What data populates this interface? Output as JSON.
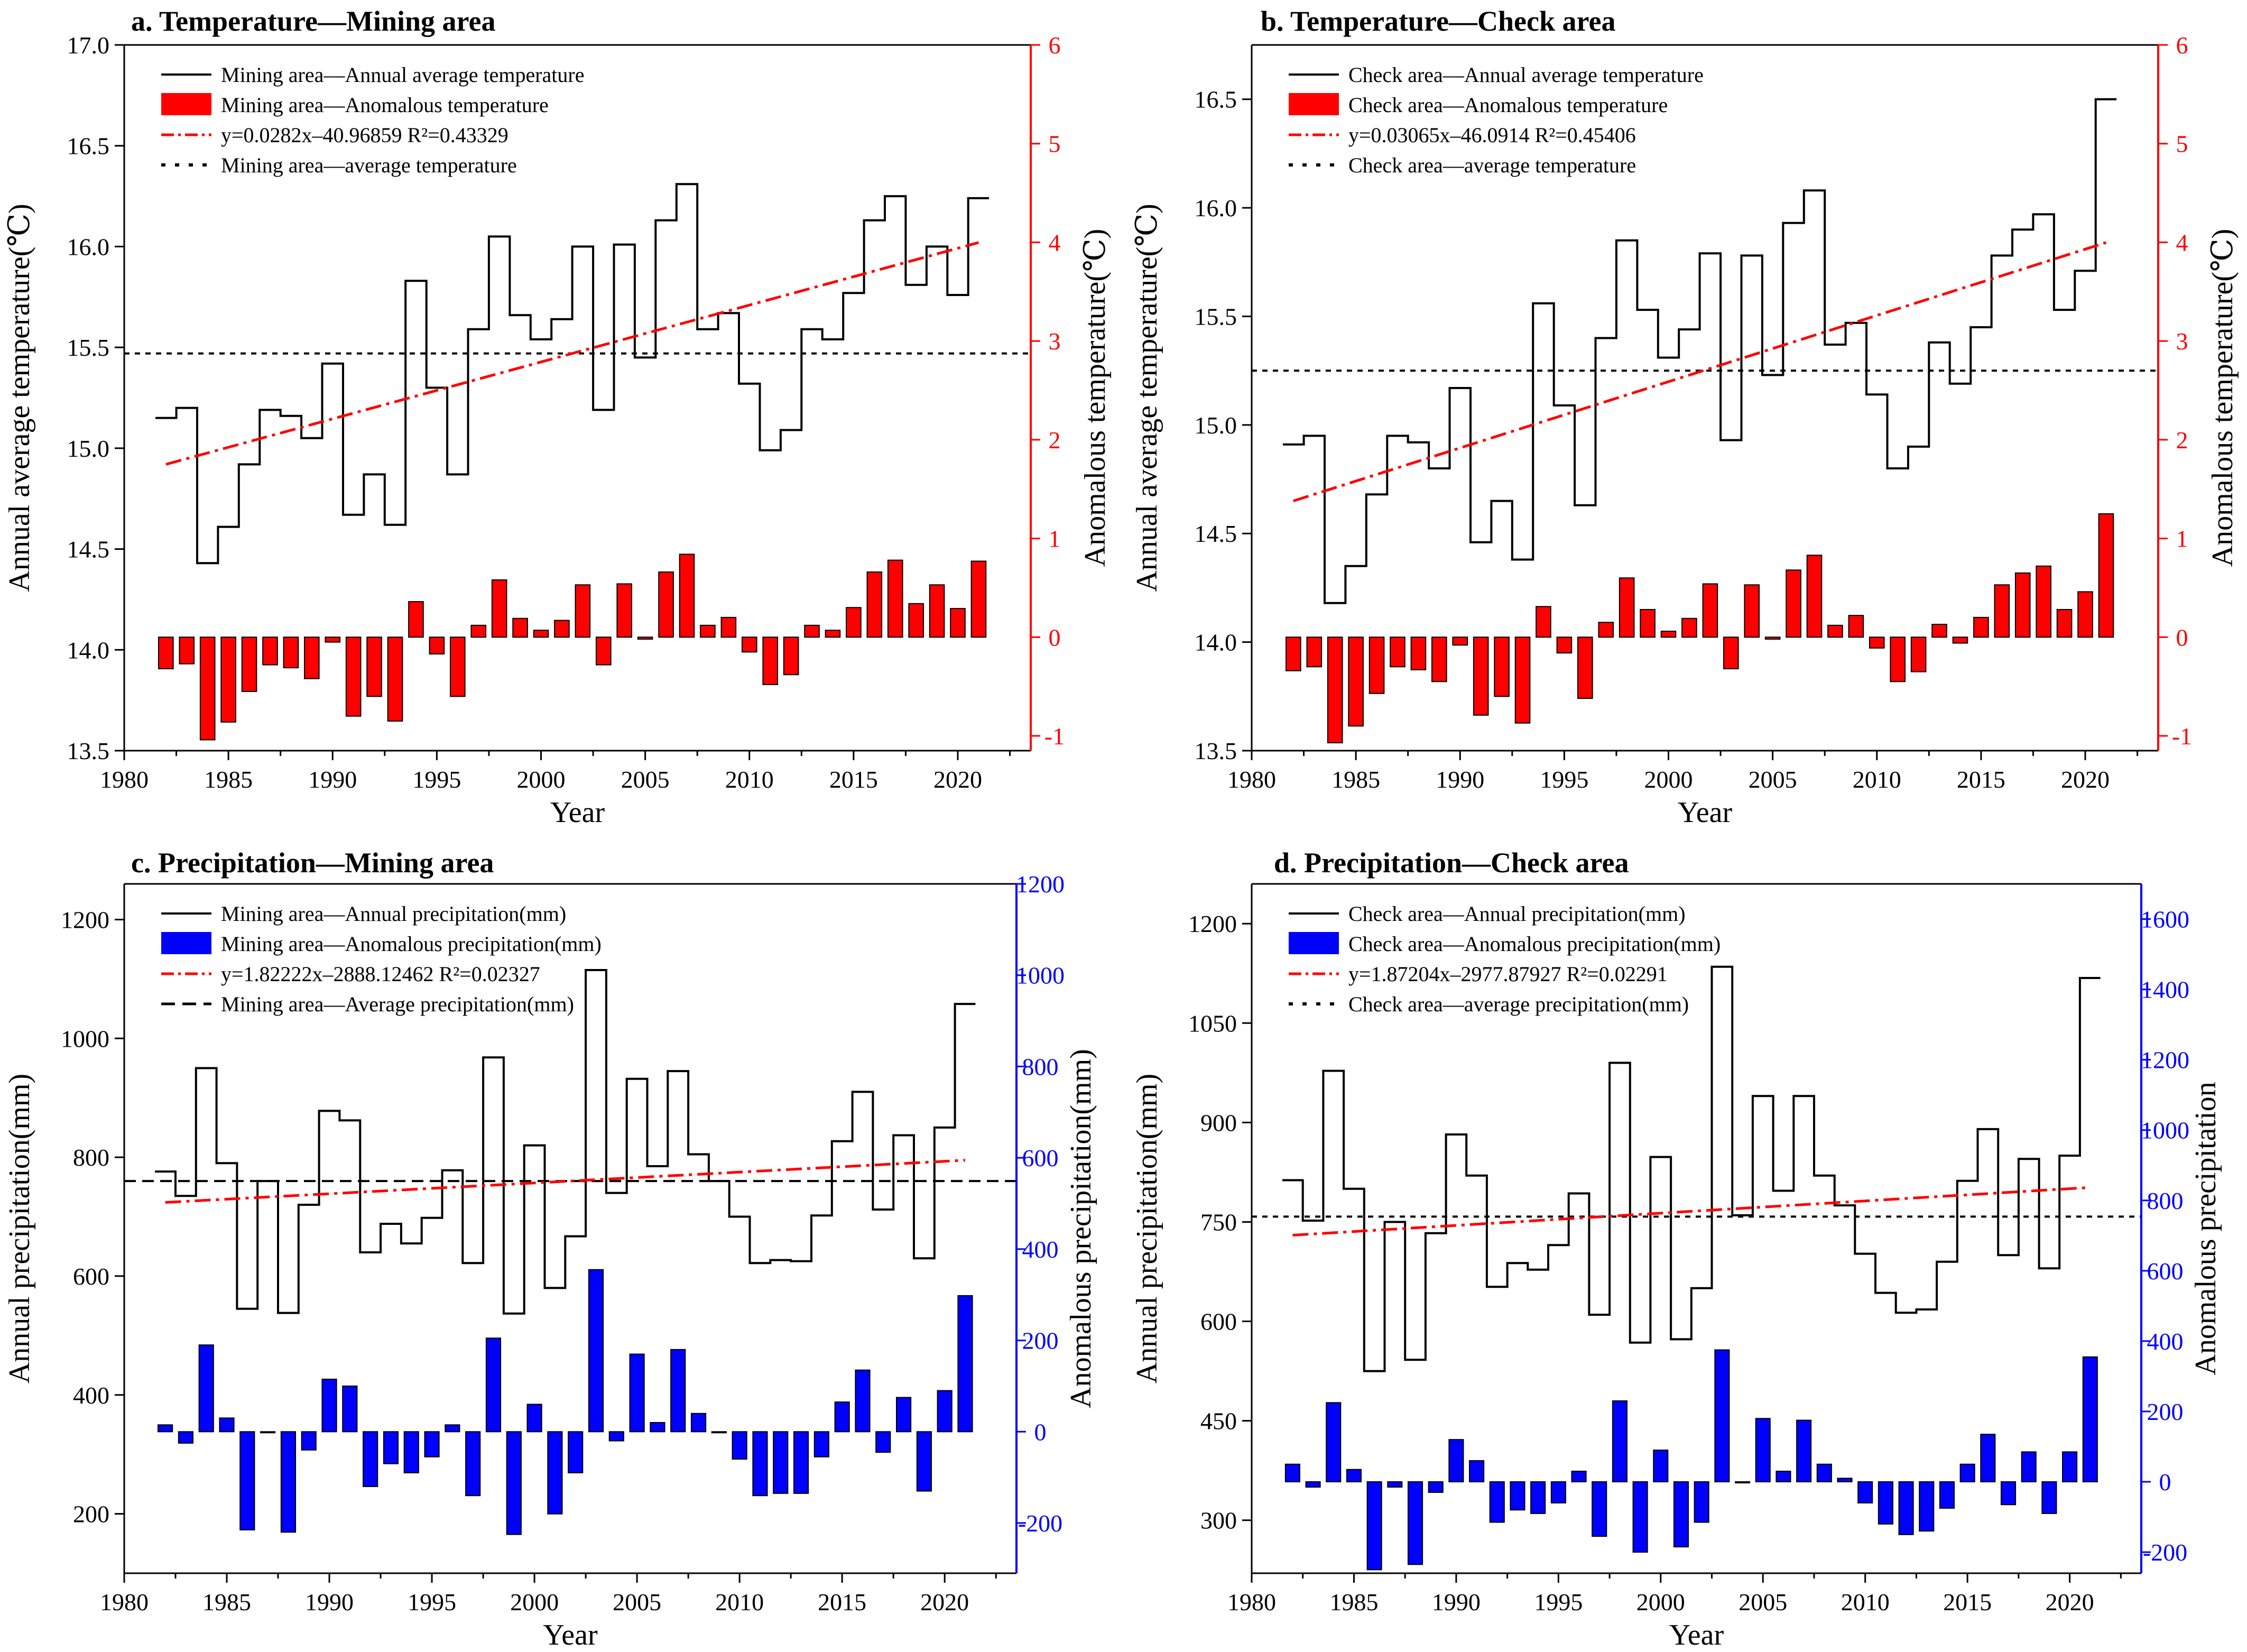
{
  "figure": {
    "description_label": "Temperature and precipitation in mining and check areas, 1982-2021"
  },
  "colors": {
    "line": "#000000",
    "bar_temp": "#ff0000",
    "bar_precip": "#0000ff",
    "trend": "#ff0000",
    "mean": "#000000",
    "axis_red": "#ff0000",
    "axis_blue": "#0000ff"
  },
  "chart_data": [
    {
      "id": "a",
      "type": "bar+line",
      "title": "a. Temperature—Mining area",
      "xlabel": "Year",
      "ylabel": "Annual average temperature(℃)",
      "y2label": "Anomalous temperature(℃)",
      "xlim": [
        1980,
        2023.5
      ],
      "ylim": [
        13.5,
        17.0
      ],
      "y2lim": [
        -1.15,
        6.0
      ],
      "xticks": [
        1980,
        1985,
        1990,
        1995,
        2000,
        2005,
        2010,
        2015,
        2020
      ],
      "yticks": [
        13.5,
        14.0,
        14.5,
        15.0,
        15.5,
        16.0,
        16.5,
        17.0
      ],
      "ytick_labels": [
        "13.5",
        "14.0",
        "14.5",
        "15.0",
        "15.5",
        "16.0",
        "16.5",
        "17.0"
      ],
      "y2ticks": [
        -1,
        0,
        1,
        2,
        3,
        4,
        5,
        6
      ],
      "bar_color": "#ff0000",
      "axis2_color": "#ff0000",
      "legend": [
        {
          "kind": "line",
          "label": "Mining area—Annual average temperature"
        },
        {
          "kind": "bar",
          "label": "Mining area—Anomalous temperature"
        },
        {
          "kind": "trend",
          "label": "y=0.0282x–40.96859 R²=0.43329"
        },
        {
          "kind": "mean",
          "label": "Mining area—average temperature"
        }
      ],
      "x": [
        1982,
        1983,
        1984,
        1985,
        1986,
        1987,
        1988,
        1989,
        1990,
        1991,
        1992,
        1993,
        1994,
        1995,
        1996,
        1997,
        1998,
        1999,
        2000,
        2001,
        2002,
        2003,
        2004,
        2005,
        2006,
        2007,
        2008,
        2009,
        2010,
        2011,
        2012,
        2013,
        2014,
        2015,
        2016,
        2017,
        2018,
        2019,
        2020,
        2021
      ],
      "series": [
        {
          "name": "Mining area—Annual average temperature",
          "axis": "left",
          "values": [
            15.15,
            15.2,
            14.43,
            14.61,
            14.92,
            15.19,
            15.16,
            15.05,
            15.42,
            14.67,
            14.87,
            14.62,
            15.83,
            15.3,
            14.87,
            15.59,
            16.05,
            15.66,
            15.54,
            15.64,
            16.0,
            15.19,
            16.01,
            15.45,
            16.13,
            16.31,
            15.59,
            15.67,
            15.32,
            14.99,
            15.09,
            15.59,
            15.54,
            15.77,
            16.13,
            16.25,
            15.81,
            16.0,
            15.76,
            16.24
          ]
        },
        {
          "name": "Mining area—Anomalous temperature",
          "axis": "right",
          "values": [
            -0.32,
            -0.27,
            -1.04,
            -0.86,
            -0.55,
            -0.28,
            -0.31,
            -0.42,
            -0.05,
            -0.8,
            -0.6,
            -0.85,
            0.36,
            -0.17,
            -0.6,
            0.12,
            0.58,
            0.19,
            0.07,
            0.17,
            0.53,
            -0.28,
            0.54,
            -0.02,
            0.66,
            0.84,
            0.12,
            0.2,
            -0.15,
            -0.48,
            -0.38,
            0.12,
            0.07,
            0.3,
            0.66,
            0.78,
            0.34,
            0.53,
            0.29,
            0.77
          ]
        }
      ],
      "trend": {
        "x": [
          1982,
          2021
        ],
        "y": [
          14.92,
          16.02
        ]
      },
      "mean": 15.47
    },
    {
      "id": "b",
      "type": "bar+line",
      "title": "b. Temperature—Check area",
      "xlabel": "Year",
      "ylabel": "Annual average temperature(℃)",
      "y2label": "Anomalous temperature(℃)",
      "xlim": [
        1980,
        2023.5
      ],
      "ylim": [
        13.5,
        16.75
      ],
      "y2lim": [
        -1.15,
        6.0
      ],
      "xticks": [
        1980,
        1985,
        1990,
        1995,
        2000,
        2005,
        2010,
        2015,
        2020
      ],
      "yticks": [
        13.5,
        14.0,
        14.5,
        15.0,
        15.5,
        16.0,
        16.5
      ],
      "ytick_labels": [
        "13.5",
        "14.0",
        "14.5",
        "15.0",
        "15.5",
        "16.0",
        "16.5"
      ],
      "y2ticks": [
        -1,
        0,
        1,
        2,
        3,
        4,
        5,
        6
      ],
      "bar_color": "#ff0000",
      "axis2_color": "#ff0000",
      "legend": [
        {
          "kind": "line",
          "label": "Check area—Annual average temperature"
        },
        {
          "kind": "bar",
          "label": "Check area—Anomalous temperature"
        },
        {
          "kind": "trend",
          "label": "y=0.03065x–46.0914  R²=0.45406"
        },
        {
          "kind": "mean",
          "label": "Check area—average temperature"
        }
      ],
      "x": [
        1982,
        1983,
        1984,
        1985,
        1986,
        1987,
        1988,
        1989,
        1990,
        1991,
        1992,
        1993,
        1994,
        1995,
        1996,
        1997,
        1998,
        1999,
        2000,
        2001,
        2002,
        2003,
        2004,
        2005,
        2006,
        2007,
        2008,
        2009,
        2010,
        2011,
        2012,
        2013,
        2014,
        2015,
        2016,
        2017,
        2018,
        2019,
        2020,
        2021
      ],
      "series": [
        {
          "name": "Check area—Annual average temperature",
          "axis": "left",
          "values": [
            14.91,
            14.95,
            14.18,
            14.35,
            14.68,
            14.95,
            14.92,
            14.8,
            15.17,
            14.46,
            14.65,
            14.38,
            15.56,
            15.09,
            14.63,
            15.4,
            15.85,
            15.53,
            15.31,
            15.44,
            15.79,
            14.93,
            15.78,
            15.23,
            15.93,
            16.08,
            15.37,
            15.47,
            15.14,
            14.8,
            14.9,
            15.38,
            15.19,
            15.45,
            15.78,
            15.9,
            15.97,
            15.53,
            15.71,
            16.5
          ]
        },
        {
          "name": "Check area—Anomalous temperature",
          "axis": "right",
          "values": [
            -0.34,
            -0.3,
            -1.07,
            -0.9,
            -0.57,
            -0.3,
            -0.33,
            -0.45,
            -0.08,
            -0.79,
            -0.6,
            -0.87,
            0.31,
            -0.16,
            -0.62,
            0.15,
            0.6,
            0.28,
            0.06,
            0.19,
            0.54,
            -0.32,
            0.53,
            -0.02,
            0.68,
            0.83,
            0.12,
            0.22,
            -0.11,
            -0.45,
            -0.35,
            0.13,
            -0.06,
            0.2,
            0.53,
            0.65,
            0.72,
            0.28,
            0.46,
            1.25
          ]
        }
      ],
      "trend": {
        "x": [
          1982,
          2021
        ],
        "y": [
          14.65,
          15.84
        ]
      },
      "mean": 15.25
    },
    {
      "id": "c",
      "type": "bar+line",
      "title": "c. Precipitation—Mining area",
      "xlabel": "Year",
      "ylabel": "Annual precipitation(mm)",
      "y2label": "Anomalous precipitation(mm)",
      "xlim": [
        1980,
        2023.5
      ],
      "ylim": [
        100,
        1260
      ],
      "y2lim": [
        -310,
        1200
      ],
      "xticks": [
        1980,
        1985,
        1990,
        1995,
        2000,
        2005,
        2010,
        2015,
        2020
      ],
      "yticks": [
        200,
        400,
        600,
        800,
        1000,
        1200
      ],
      "ytick_labels": [
        "200",
        "400",
        "600",
        "800",
        "1000",
        "1200"
      ],
      "y2ticks": [
        -200,
        0,
        200,
        400,
        600,
        800,
        1000,
        1200
      ],
      "bar_color": "#0000ff",
      "axis2_color": "#0000ff",
      "legend": [
        {
          "kind": "line",
          "label": "Mining area—Annual  precipitation(mm)"
        },
        {
          "kind": "bar",
          "label": "Mining area—Anomalous precipitation(mm)"
        },
        {
          "kind": "trend",
          "label": "y=1.82222x–2888.12462  R²=0.02327"
        },
        {
          "kind": "meanlong",
          "label": "Mining area—Average precipitation(mm)"
        }
      ],
      "x": [
        1982,
        1983,
        1984,
        1985,
        1986,
        1987,
        1988,
        1989,
        1990,
        1991,
        1992,
        1993,
        1994,
        1995,
        1996,
        1997,
        1998,
        1999,
        2000,
        2001,
        2002,
        2003,
        2004,
        2005,
        2006,
        2007,
        2008,
        2009,
        2010,
        2011,
        2012,
        2013,
        2014,
        2015,
        2016,
        2017,
        2018,
        2019,
        2020,
        2021
      ],
      "series": [
        {
          "name": "Mining area—Annual  precipitation(mm)",
          "axis": "left",
          "values": [
            776,
            735,
            950,
            790,
            545,
            760,
            538,
            720,
            878,
            862,
            640,
            688,
            655,
            698,
            778,
            622,
            968,
            537,
            820,
            580,
            667,
            1115,
            740,
            932,
            785,
            945,
            805,
            760,
            700,
            622,
            627,
            625,
            702,
            827,
            910,
            712,
            837,
            630,
            850,
            1058
          ]
        },
        {
          "name": "Mining area—Anomalous precipitation(mm)",
          "axis": "right",
          "values": [
            15,
            -25,
            190,
            30,
            -215,
            0,
            -220,
            -40,
            115,
            100,
            -120,
            -70,
            -90,
            -55,
            15,
            -140,
            205,
            -225,
            60,
            -180,
            -90,
            355,
            -20,
            170,
            20,
            180,
            40,
            0,
            -60,
            -140,
            -135,
            -135,
            -55,
            65,
            135,
            -45,
            75,
            -130,
            90,
            298
          ]
        }
      ],
      "trend": {
        "x": [
          1982,
          2021
        ],
        "y": [
          724,
          795
        ]
      },
      "mean": 760
    },
    {
      "id": "d",
      "type": "bar+line",
      "title": "d. Precipitation—Check area",
      "xlabel": "Year",
      "ylabel": "Annual precipitation(mm)",
      "y2label": "Anomalous precipitation",
      "xlim": [
        1980,
        2023.5
      ],
      "ylim": [
        220,
        1260
      ],
      "y2lim": [
        -260,
        1700
      ],
      "xticks": [
        1980,
        1985,
        1990,
        1995,
        2000,
        2005,
        2010,
        2015,
        2020
      ],
      "yticks": [
        300,
        450,
        600,
        750,
        900,
        1050,
        1200
      ],
      "ytick_labels": [
        "300",
        "450",
        "600",
        "750",
        "900",
        "1050",
        "1200"
      ],
      "y2ticks": [
        -200,
        0,
        200,
        400,
        600,
        800,
        1000,
        1200,
        1400,
        1600
      ],
      "bar_color": "#0000ff",
      "axis2_color": "#0000ff",
      "legend": [
        {
          "kind": "line",
          "label": "Check area—Annual precipitation(mm)"
        },
        {
          "kind": "bar",
          "label": "Check area—Anomalous precipitation(mm)"
        },
        {
          "kind": "trend",
          "label": "y=1.87204x–2977.87927 R²=0.02291"
        },
        {
          "kind": "mean",
          "label": "Check area—average precipitation(mm)"
        }
      ],
      "x": [
        1982,
        1983,
        1984,
        1985,
        1986,
        1987,
        1988,
        1989,
        1990,
        1991,
        1992,
        1993,
        1994,
        1995,
        1996,
        1997,
        1998,
        1999,
        2000,
        2001,
        2002,
        2003,
        2004,
        2005,
        2006,
        2007,
        2008,
        2009,
        2010,
        2011,
        2012,
        2013,
        2014,
        2015,
        2016,
        2017,
        2018,
        2019,
        2020,
        2021
      ],
      "series": [
        {
          "name": "Check area—Annual precipitation(mm)",
          "axis": "left",
          "values": [
            813,
            752,
            978,
            800,
            525,
            750,
            542,
            733,
            882,
            820,
            652,
            688,
            678,
            715,
            793,
            610,
            990,
            568,
            848,
            573,
            650,
            1135,
            760,
            940,
            797,
            940,
            820,
            775,
            702,
            643,
            613,
            618,
            690,
            812,
            890,
            700,
            845,
            680,
            850,
            1118
          ]
        },
        {
          "name": "Check area—Anomalous precipitation(mm)",
          "axis": "right",
          "values": [
            50,
            -15,
            225,
            35,
            -250,
            -15,
            -235,
            -30,
            120,
            60,
            -115,
            -80,
            -90,
            -60,
            30,
            -155,
            230,
            -200,
            90,
            -185,
            -115,
            375,
            0,
            180,
            30,
            175,
            50,
            10,
            -60,
            -120,
            -150,
            -140,
            -75,
            50,
            135,
            -65,
            85,
            -90,
            85,
            355
          ]
        }
      ],
      "trend": {
        "x": [
          1982,
          2021
        ],
        "y": [
          730,
          802
        ]
      },
      "mean": 758
    }
  ]
}
